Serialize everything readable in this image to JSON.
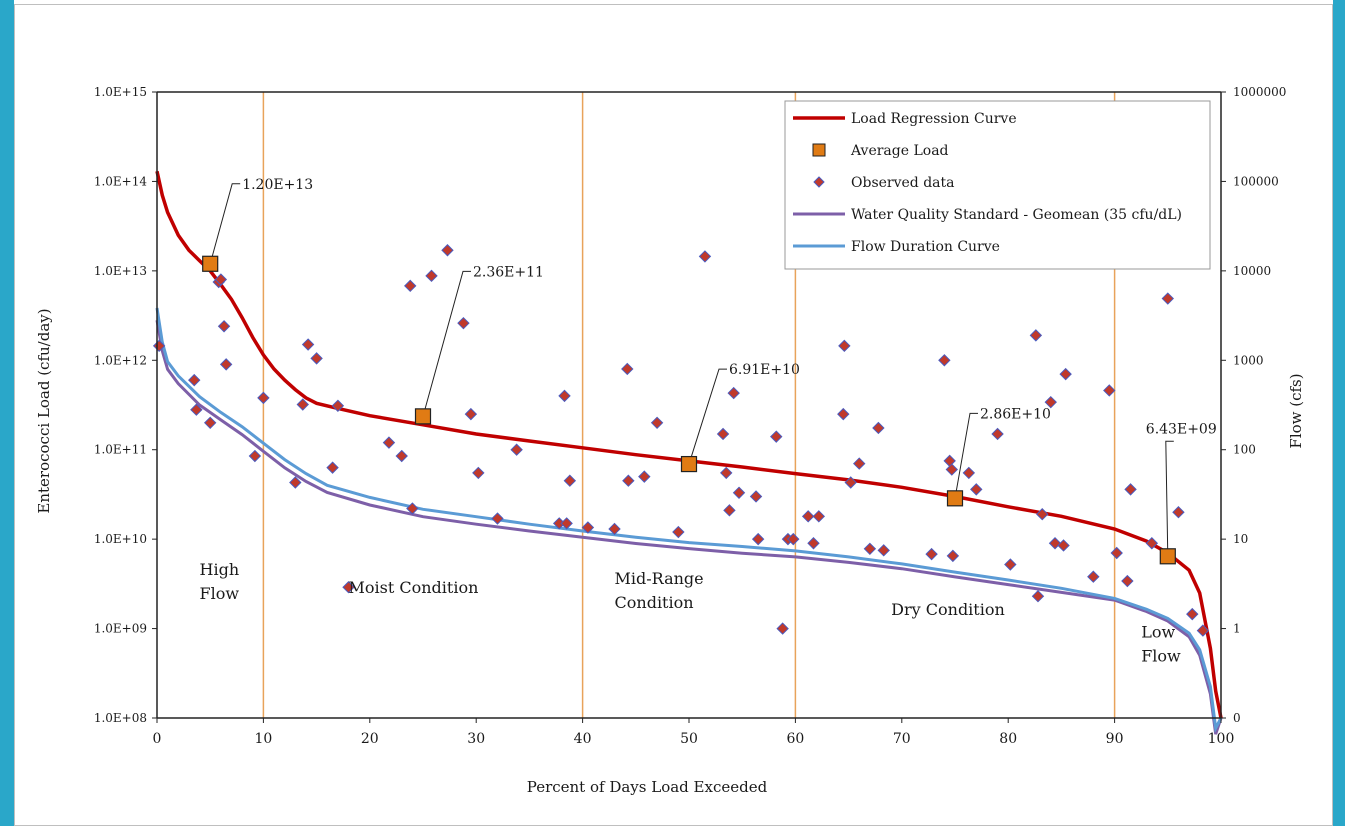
{
  "colors": {
    "frame": "#2aa7c9",
    "load_curve": "#c00000",
    "flow_curve": "#5b9bd5",
    "standard_curve": "#7d5fa8",
    "avg_load": "#e07b14",
    "observed": "#c0392b",
    "observed_edge": "#4a5bbf",
    "divider": "#e8a35a"
  },
  "chart_data": {
    "type": "scatter",
    "xlabel": "Percent of Days Load Exceeded",
    "ylabel": "Enterococci Load (cfu/day)",
    "y2label": "Flow (cfs)",
    "xlim": [
      0,
      100
    ],
    "ylim_log10": [
      8,
      15
    ],
    "y2lim_log10": [
      0,
      6
    ],
    "y_scale": "log",
    "y2_scale": "log",
    "x_ticks": [
      "0",
      "10",
      "20",
      "30",
      "40",
      "50",
      "60",
      "70",
      "80",
      "90",
      "100"
    ],
    "y_ticks": [
      "1.0E+15",
      "1.0E+14",
      "1.0E+13",
      "1.0E+12",
      "1.0E+11",
      "1.0E+10",
      "1.0E+09",
      "1.0E+08"
    ],
    "y2_ticks": [
      "1000000",
      "100000",
      "10000",
      "1000",
      "100",
      "10",
      "1",
      "0"
    ],
    "legend_position": "top-right",
    "legend": [
      {
        "key": "load",
        "label": "Load Regression Curve"
      },
      {
        "key": "avg",
        "label": "Average Load"
      },
      {
        "key": "obs",
        "label": "Observed data"
      },
      {
        "key": "std",
        "label": "Water Quality Standard - Geomean (35 cfu/dL)"
      },
      {
        "key": "flow",
        "label": "Flow Duration Curve"
      }
    ],
    "dividers_x": [
      10,
      40,
      60,
      90
    ],
    "zone_labels": [
      {
        "lines": [
          "High",
          "Flow"
        ],
        "x": 4,
        "y": 9.6
      },
      {
        "lines": [
          "Moist Condition"
        ],
        "x": 18,
        "y": 9.4
      },
      {
        "lines": [
          "Mid-Range",
          "Condition"
        ],
        "x": 43,
        "y": 9.5
      },
      {
        "lines": [
          "Dry Condition"
        ],
        "x": 69,
        "y": 9.15
      },
      {
        "lines": [
          "Low",
          "Flow"
        ],
        "x": 92.5,
        "y": 8.9
      }
    ],
    "average_load": [
      {
        "x": 5,
        "y": 12000000000000.0,
        "label": "1.20E+13"
      },
      {
        "x": 25,
        "y": 236000000000.0,
        "label": "2.36E+11"
      },
      {
        "x": 50,
        "y": 69100000000.0,
        "label": "6.91E+10"
      },
      {
        "x": 75,
        "y": 28600000000.0,
        "label": "2.86E+10"
      },
      {
        "x": 95,
        "y": 6430000000.0,
        "label": "6.43E+09"
      }
    ],
    "load_regression": [
      [
        0,
        130000000000000.0
      ],
      [
        0.5,
        70000000000000.0
      ],
      [
        1,
        45000000000000.0
      ],
      [
        2,
        25000000000000.0
      ],
      [
        3,
        17000000000000.0
      ],
      [
        4,
        13000000000000.0
      ],
      [
        5,
        10000000000000.0
      ],
      [
        6,
        7000000000000.0
      ],
      [
        7,
        4800000000000.0
      ],
      [
        8,
        3000000000000.0
      ],
      [
        9,
        1800000000000.0
      ],
      [
        10,
        1150000000000.0
      ],
      [
        11,
        800000000000.0
      ],
      [
        12,
        600000000000.0
      ],
      [
        13,
        470000000000.0
      ],
      [
        14,
        380000000000.0
      ],
      [
        15,
        330000000000.0
      ],
      [
        17,
        290000000000.0
      ],
      [
        20,
        240000000000.0
      ],
      [
        25,
        190000000000.0
      ],
      [
        30,
        150000000000.0
      ],
      [
        35,
        125000000000.0
      ],
      [
        40,
        105000000000.0
      ],
      [
        45,
        88000000000.0
      ],
      [
        50,
        75000000000.0
      ],
      [
        55,
        64000000000.0
      ],
      [
        60,
        54000000000.0
      ],
      [
        65,
        46000000000.0
      ],
      [
        70,
        38000000000.0
      ],
      [
        75,
        30000000000.0
      ],
      [
        80,
        23000000000.0
      ],
      [
        85,
        18000000000.0
      ],
      [
        90,
        13000000000.0
      ],
      [
        93,
        9500000000.0
      ],
      [
        95,
        7000000000.0
      ],
      [
        97,
        4500000000.0
      ],
      [
        98,
        2500000000.0
      ],
      [
        99,
        600000000.0
      ],
      [
        99.5,
        200000000.0
      ],
      [
        100,
        100000000.0
      ]
    ],
    "flow_duration": [
      [
        0,
        8500
      ],
      [
        0.5,
        4000
      ],
      [
        1,
        2600
      ],
      [
        2,
        1900
      ],
      [
        4,
        1200
      ],
      [
        6,
        850
      ],
      [
        8,
        620
      ],
      [
        10,
        430
      ],
      [
        12,
        300
      ],
      [
        14,
        220
      ],
      [
        16,
        170
      ],
      [
        20,
        130
      ],
      [
        25,
        100
      ],
      [
        30,
        85
      ],
      [
        35,
        72
      ],
      [
        40,
        62
      ],
      [
        45,
        54
      ],
      [
        50,
        48
      ],
      [
        55,
        44
      ],
      [
        60,
        40
      ],
      [
        65,
        35
      ],
      [
        70,
        30
      ],
      [
        75,
        25
      ],
      [
        80,
        21
      ],
      [
        85,
        17.5
      ],
      [
        90,
        14
      ],
      [
        93,
        11
      ],
      [
        95,
        9
      ],
      [
        97,
        6.5
      ],
      [
        98,
        4.5
      ],
      [
        99,
        2
      ],
      [
        99.5,
        0.8
      ],
      [
        100,
        0
      ]
    ],
    "water_quality_standard": [
      [
        0,
        6500
      ],
      [
        0.5,
        3300
      ],
      [
        1,
        2200
      ],
      [
        2,
        1600
      ],
      [
        4,
        1000
      ],
      [
        6,
        720
      ],
      [
        8,
        520
      ],
      [
        10,
        360
      ],
      [
        12,
        250
      ],
      [
        14,
        185
      ],
      [
        16,
        145
      ],
      [
        20,
        110
      ],
      [
        25,
        85
      ],
      [
        30,
        72
      ],
      [
        35,
        62
      ],
      [
        40,
        54
      ],
      [
        45,
        47
      ],
      [
        50,
        42
      ],
      [
        55,
        38
      ],
      [
        60,
        35
      ],
      [
        65,
        31
      ],
      [
        70,
        27
      ],
      [
        75,
        22.5
      ],
      [
        80,
        19
      ],
      [
        85,
        16
      ],
      [
        90,
        13.5
      ],
      [
        93,
        10.5
      ],
      [
        95,
        8.5
      ],
      [
        97,
        6
      ],
      [
        98,
        4
      ],
      [
        99,
        1.7
      ],
      [
        99.5,
        0.7
      ],
      [
        100,
        0
      ]
    ],
    "observed": [
      [
        0.2,
        1450000000000.0
      ],
      [
        3.5,
        600000000000.0
      ],
      [
        3.7,
        280000000000.0
      ],
      [
        5,
        200000000000.0
      ],
      [
        5.8,
        7500000000000.0
      ],
      [
        6,
        8000000000000.0
      ],
      [
        6.3,
        2400000000000.0
      ],
      [
        6.5,
        900000000000.0
      ],
      [
        9.2,
        85000000000.0
      ],
      [
        10,
        380000000000.0
      ],
      [
        13,
        43000000000.0
      ],
      [
        13.7,
        320000000000.0
      ],
      [
        14.2,
        1500000000000.0
      ],
      [
        15,
        1050000000000.0
      ],
      [
        16.5,
        63000000000.0
      ],
      [
        17,
        310000000000.0
      ],
      [
        18,
        2900000000.0
      ],
      [
        21.8,
        120000000000.0
      ],
      [
        23,
        85000000000.0
      ],
      [
        23.8,
        6800000000000.0
      ],
      [
        24,
        22000000000.0
      ],
      [
        25.8,
        8800000000000.0
      ],
      [
        27.3,
        17000000000000.0
      ],
      [
        28.8,
        2600000000000.0
      ],
      [
        29.5,
        250000000000.0
      ],
      [
        30.2,
        55000000000.0
      ],
      [
        32,
        17000000000.0
      ],
      [
        33.8,
        100000000000.0
      ],
      [
        37.8,
        15000000000.0
      ],
      [
        38.3,
        400000000000.0
      ],
      [
        38.5,
        15000000000.0
      ],
      [
        38.8,
        45000000000.0
      ],
      [
        40.5,
        13500000000.0
      ],
      [
        43,
        13000000000.0
      ],
      [
        44.2,
        800000000000.0
      ],
      [
        44.3,
        45000000000.0
      ],
      [
        45.8,
        50000000000.0
      ],
      [
        47,
        200000000000.0
      ],
      [
        49,
        12000000000.0
      ],
      [
        51.5,
        14500000000000.0
      ],
      [
        53.2,
        150000000000.0
      ],
      [
        53.5,
        55000000000.0
      ],
      [
        53.8,
        21000000000.0
      ],
      [
        54.2,
        430000000000.0
      ],
      [
        54.7,
        33000000000.0
      ],
      [
        56.3,
        30000000000.0
      ],
      [
        56.5,
        10000000000.0
      ],
      [
        58.2,
        140000000000.0
      ],
      [
        58.8,
        1000000000.0
      ],
      [
        59.3,
        10000000000.0
      ],
      [
        59.8,
        10000000000.0
      ],
      [
        61.2,
        18000000000.0
      ],
      [
        61.7,
        9000000000.0
      ],
      [
        62.2,
        18000000000.0
      ],
      [
        64.5,
        250000000000.0
      ],
      [
        64.6,
        1450000000000.0
      ],
      [
        65.2,
        43000000000.0
      ],
      [
        66,
        70000000000.0
      ],
      [
        67,
        7800000000.0
      ],
      [
        67.8,
        175000000000.0
      ],
      [
        68.3,
        7500000000.0
      ],
      [
        72.8,
        6800000000.0
      ],
      [
        74,
        1000000000000.0
      ],
      [
        74.5,
        75000000000.0
      ],
      [
        74.7,
        60000000000.0
      ],
      [
        74.8,
        6500000000.0
      ],
      [
        76.3,
        55000000000.0
      ],
      [
        77,
        36000000000.0
      ],
      [
        79,
        150000000000.0
      ],
      [
        80.2,
        5200000000.0
      ],
      [
        82.6,
        1900000000000.0
      ],
      [
        82.8,
        2300000000.0
      ],
      [
        83.2,
        19000000000.0
      ],
      [
        84,
        340000000000.0
      ],
      [
        84.4,
        9000000000.0
      ],
      [
        85.2,
        8500000000.0
      ],
      [
        85.4,
        700000000000.0
      ],
      [
        88,
        3800000000.0
      ],
      [
        89.5,
        460000000000.0
      ],
      [
        90.2,
        7000000000.0
      ],
      [
        91.2,
        3400000000.0
      ],
      [
        91.5,
        36000000000.0
      ],
      [
        93.5,
        9000000000.0
      ],
      [
        95,
        4900000000000.0
      ],
      [
        96,
        20000000000.0
      ],
      [
        97.3,
        1450000000.0
      ],
      [
        98.3,
        950000000.0
      ]
    ]
  }
}
